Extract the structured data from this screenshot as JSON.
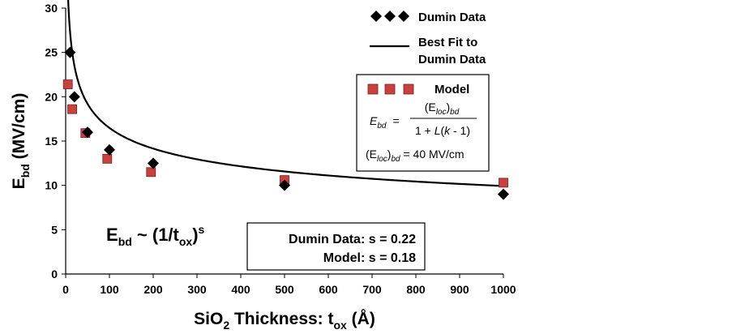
{
  "chart_data": {
    "type": "scatter",
    "x_ticks": [
      "0",
      "100",
      "200",
      "300",
      "400",
      "500",
      "600",
      "700",
      "800",
      "900",
      "1000"
    ],
    "y_ticks": [
      "0",
      "5",
      "10",
      "15",
      "20",
      "25",
      "30"
    ],
    "xlim": [
      0,
      1000
    ],
    "ylim": [
      0,
      30
    ],
    "xlabel": {
      "pre": "SiO",
      "sub1": "2",
      "mid": " Thickness: t",
      "sub2": "ox",
      "post": " (Å)"
    },
    "ylabel": {
      "main": "E",
      "sub": "bd",
      "post": " (MV/cm)"
    },
    "grid": false,
    "legend_position": "top-right",
    "series": [
      {
        "name": "Dumin Data",
        "marker": "diamond",
        "color": "#000000",
        "x": [
          10,
          20,
          50,
          100,
          200,
          500,
          1000
        ],
        "y": [
          25,
          20,
          16,
          14,
          12.5,
          10,
          9
        ]
      },
      {
        "name": "Model",
        "marker": "square",
        "color": "#c8413e",
        "x": [
          5,
          15,
          45,
          95,
          195,
          500,
          1000
        ],
        "y": [
          21.4,
          18.6,
          15.9,
          13,
          11.5,
          10.6,
          10.3
        ]
      },
      {
        "name": "Best Fit to Dumin Data",
        "marker": "line",
        "color": "#000000",
        "equation": "E = 45.4 * x^-0.22",
        "x_range": [
          5,
          1000
        ]
      }
    ],
    "legend": {
      "dumin": "Dumin Data",
      "fit_line1": "Best Fit to",
      "fit_line2": "Dumin Data",
      "model": "Model"
    },
    "equation_box": {
      "lhs": "E",
      "lhs_sub": "bd",
      "equals": "=",
      "num": "(E",
      "num_sub_loc": "loc",
      "num_close": ")",
      "num_sub_bd": "bd",
      "den_pre": "1 + ",
      "den_L": "L",
      "den_open": "(",
      "den_k": "k",
      "den_post": " - 1)",
      "eloc_open": "(E",
      "eloc_sub_loc": "loc",
      "eloc_close": ")",
      "eloc_sub_bd": "bd",
      "eloc_value": " = 40 MV/cm"
    },
    "scaling_law": {
      "pre": "E",
      "sub1": "bd",
      "mid": " ~ (1/t",
      "sub2": "ox",
      "close": ")",
      "sup": "s"
    },
    "s_box": {
      "line1": "Dumin Data: s = 0.22",
      "line2": "Model: s = 0.18"
    }
  }
}
